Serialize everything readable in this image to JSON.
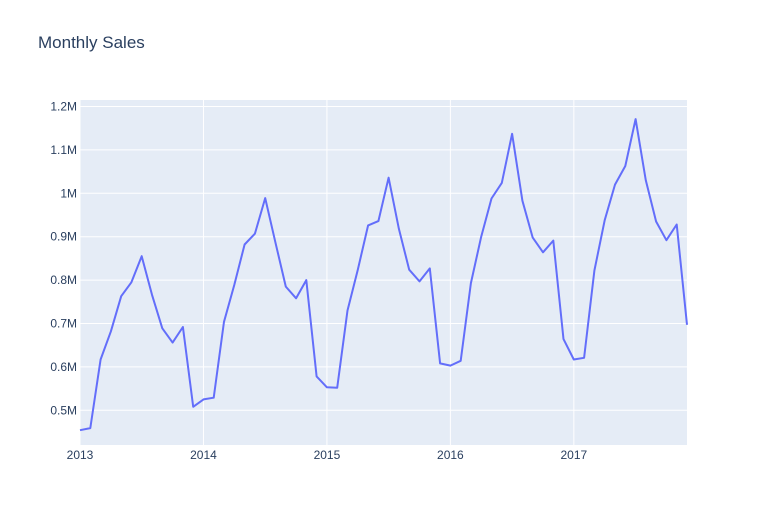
{
  "chart_data": {
    "type": "line",
    "title": "Monthly Sales",
    "xlabel": "",
    "ylabel": "",
    "x_range": [
      "2013-01",
      "2017-12"
    ],
    "ylim": [
      420000,
      1215000
    ],
    "x_ticks": [
      {
        "date": "2013-01",
        "label": "2013"
      },
      {
        "date": "2014-01",
        "label": "2014"
      },
      {
        "date": "2015-01",
        "label": "2015"
      },
      {
        "date": "2016-01",
        "label": "2016"
      },
      {
        "date": "2017-01",
        "label": "2017"
      }
    ],
    "y_ticks": [
      {
        "value": 500000,
        "label": "0.5M"
      },
      {
        "value": 600000,
        "label": "0.6M"
      },
      {
        "value": 700000,
        "label": "0.7M"
      },
      {
        "value": 800000,
        "label": "0.8M"
      },
      {
        "value": 900000,
        "label": "0.9M"
      },
      {
        "value": 1000000,
        "label": "1M"
      },
      {
        "value": 1100000,
        "label": "1.1M"
      },
      {
        "value": 1200000,
        "label": "1.2M"
      }
    ],
    "grid": true,
    "colors": {
      "line": "#636efa",
      "plot_bg": "#e5ecf6",
      "grid": "#ffffff",
      "text": "#2a3f5f"
    },
    "series": [
      {
        "x": [
          "2013-01",
          "2013-02",
          "2013-03",
          "2013-04",
          "2013-05",
          "2013-06",
          "2013-07",
          "2013-08",
          "2013-09",
          "2013-10",
          "2013-11",
          "2013-12",
          "2014-01",
          "2014-02",
          "2014-03",
          "2014-04",
          "2014-05",
          "2014-06",
          "2014-07",
          "2014-08",
          "2014-09",
          "2014-10",
          "2014-11",
          "2014-12",
          "2015-01",
          "2015-02",
          "2015-03",
          "2015-04",
          "2015-05",
          "2015-06",
          "2015-07",
          "2015-08",
          "2015-09",
          "2015-10",
          "2015-11",
          "2015-12",
          "2016-01",
          "2016-02",
          "2016-03",
          "2016-04",
          "2016-05",
          "2016-06",
          "2016-07",
          "2016-08",
          "2016-09",
          "2016-10",
          "2016-11",
          "2016-12",
          "2017-01",
          "2017-02",
          "2017-03",
          "2017-04",
          "2017-05",
          "2017-06",
          "2017-07",
          "2017-08",
          "2017-09",
          "2017-10",
          "2017-11",
          "2017-12"
        ],
        "values": [
          454000,
          459000,
          617000,
          682000,
          763000,
          795000,
          855000,
          766000,
          689000,
          656000,
          692000,
          508000,
          525000,
          529000,
          704000,
          789000,
          882000,
          907000,
          989000,
          886000,
          785000,
          758000,
          800000,
          578000,
          553000,
          552000,
          730000,
          824000,
          926000,
          936000,
          1036000,
          918000,
          824000,
          797000,
          827000,
          608000,
          603000,
          614000,
          793000,
          900000,
          988000,
          1024000,
          1137000,
          983000,
          898000,
          864000,
          891000,
          664000,
          617000,
          621000,
          822000,
          938000,
          1020000,
          1063000,
          1171000,
          1030000,
          935000,
          892000,
          928000,
          697000
        ]
      }
    ]
  }
}
